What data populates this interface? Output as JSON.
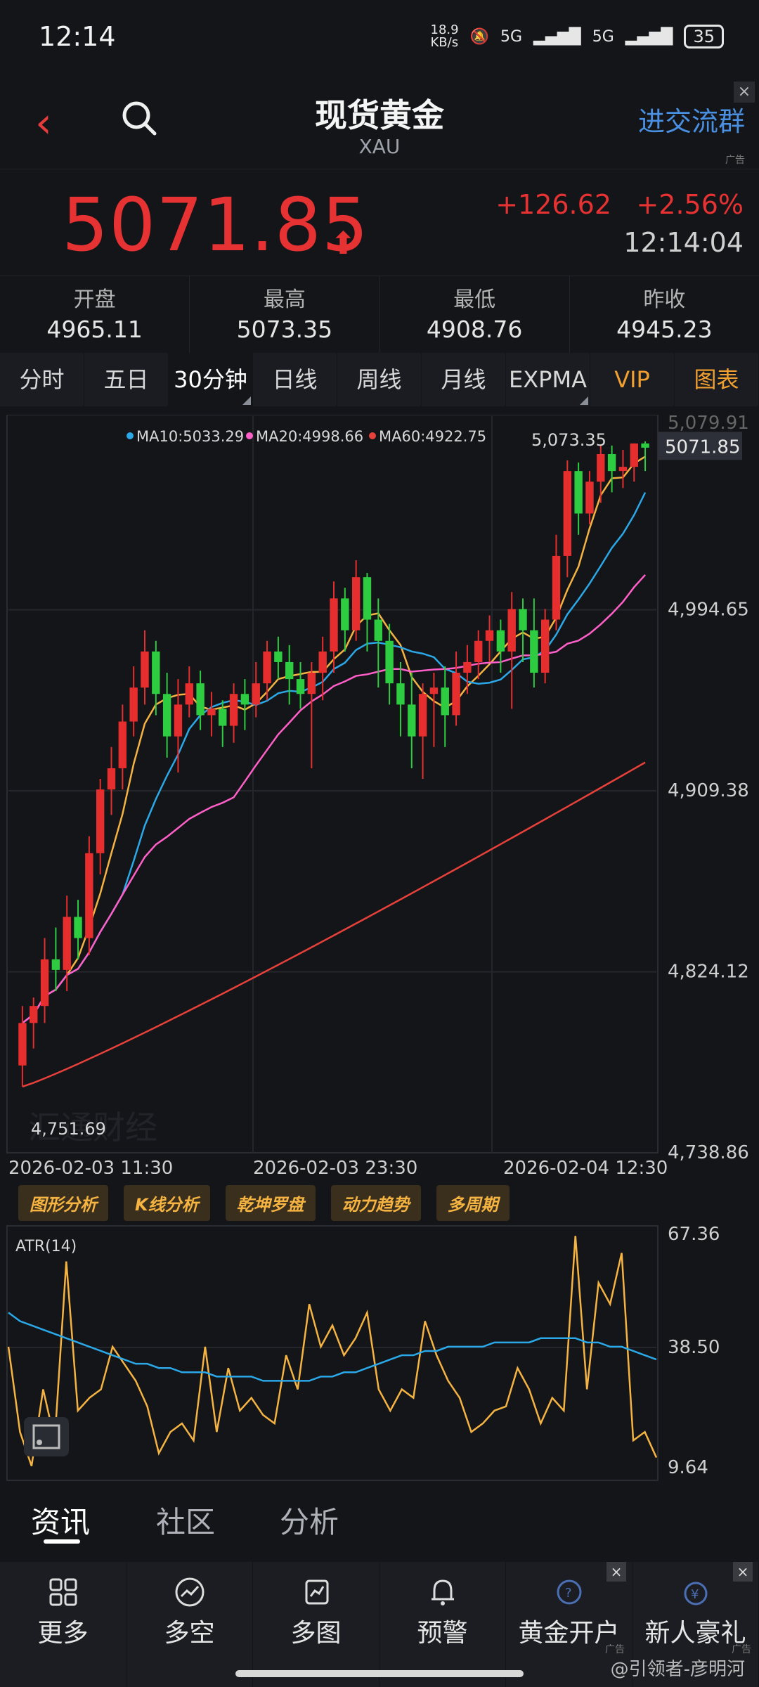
{
  "status_bar": {
    "time": "12:14",
    "speed": "18.9\nKB/s",
    "net1": "5G",
    "net2": "5G",
    "battery": "35"
  },
  "header": {
    "title": "现货黄金",
    "subtitle": "XAU",
    "ad_link": "进交流群",
    "ad_tag": "广告"
  },
  "quote": {
    "price": "5071.85",
    "change": "+126.62",
    "change_pct": "+2.56%",
    "time": "12:14:04"
  },
  "stats": [
    {
      "label": "开盘",
      "value": "4965.11"
    },
    {
      "label": "最高",
      "value": "5073.35"
    },
    {
      "label": "最低",
      "value": "4908.76"
    },
    {
      "label": "昨收",
      "value": "4945.23"
    }
  ],
  "tabs": [
    "分时",
    "五日",
    "30分钟",
    "日线",
    "周线",
    "月线",
    "EXPMA",
    "VIP",
    "图表"
  ],
  "active_tab": "30分钟",
  "chart_data": {
    "type": "candlestick",
    "legend": {
      "ma10": "MA10:5033.29",
      "ma20": "MA20:4998.66",
      "ma60": "MA60:4922.75"
    },
    "y_ticks": [
      "5,079.91",
      "4,994.65",
      "4,909.38",
      "4,824.12",
      "4,738.86"
    ],
    "ylim": [
      4738.86,
      5079.91
    ],
    "x_ticks": [
      "2026-02-03 11:30",
      "2026-02-03 23:30",
      "2026-02-04 12:30"
    ],
    "current_price_label": "5071.85",
    "high_label": "5,073.35",
    "low_label": "4,751.69",
    "candles": [
      [
        4780,
        4800,
        4770,
        4808
      ],
      [
        4800,
        4808,
        4788,
        4812
      ],
      [
        4808,
        4830,
        4800,
        4840
      ],
      [
        4830,
        4825,
        4815,
        4845
      ],
      [
        4825,
        4850,
        4815,
        4860
      ],
      [
        4850,
        4840,
        4830,
        4858
      ],
      [
        4840,
        4880,
        4832,
        4888
      ],
      [
        4880,
        4910,
        4870,
        4915
      ],
      [
        4910,
        4920,
        4898,
        4930
      ],
      [
        4920,
        4942,
        4910,
        4950
      ],
      [
        4942,
        4958,
        4935,
        4968
      ],
      [
        4958,
        4975,
        4950,
        4985
      ],
      [
        4975,
        4955,
        4945,
        4980
      ],
      [
        4955,
        4935,
        4925,
        4965
      ],
      [
        4935,
        4950,
        4918,
        4962
      ],
      [
        4950,
        4960,
        4944,
        4968
      ],
      [
        4960,
        4945,
        4938,
        4966
      ],
      [
        4945,
        4948,
        4935,
        4956
      ],
      [
        4948,
        4940,
        4930,
        4952
      ],
      [
        4940,
        4955,
        4932,
        4960
      ],
      [
        4955,
        4950,
        4938,
        4962
      ],
      [
        4950,
        4960,
        4944,
        4970
      ],
      [
        4960,
        4975,
        4952,
        4980
      ],
      [
        4975,
        4970,
        4962,
        4982
      ],
      [
        4970,
        4962,
        4950,
        4978
      ],
      [
        4962,
        4955,
        4948,
        4970
      ],
      [
        4955,
        4965,
        4920,
        4970
      ],
      [
        4965,
        4975,
        4952,
        4982
      ],
      [
        4975,
        5000,
        4965,
        5008
      ],
      [
        5000,
        4985,
        4975,
        5005
      ],
      [
        4985,
        5010,
        4980,
        5018
      ],
      [
        5010,
        4990,
        4975,
        5012
      ],
      [
        4990,
        4980,
        4958,
        5000
      ],
      [
        4980,
        4960,
        4950,
        4988
      ],
      [
        4960,
        4950,
        4935,
        4970
      ],
      [
        4950,
        4935,
        4920,
        4965
      ],
      [
        4935,
        4955,
        4915,
        4960
      ],
      [
        4955,
        4958,
        4930,
        4965
      ],
      [
        4958,
        4945,
        4930,
        4968
      ],
      [
        4945,
        4965,
        4940,
        4975
      ],
      [
        4965,
        4970,
        4955,
        4978
      ],
      [
        4970,
        4980,
        4962,
        4985
      ],
      [
        4980,
        4985,
        4970,
        4992
      ],
      [
        4985,
        4975,
        4965,
        4990
      ],
      [
        4975,
        4995,
        4948,
        5003
      ],
      [
        4995,
        4985,
        4970,
        5000
      ],
      [
        4985,
        4965,
        4958,
        5000
      ],
      [
        4965,
        4990,
        4960,
        4995
      ],
      [
        4990,
        5020,
        4985,
        5030
      ],
      [
        5020,
        5060,
        5010,
        5065
      ],
      [
        5060,
        5040,
        5030,
        5064
      ],
      [
        5040,
        5055,
        5035,
        5060
      ],
      [
        5055,
        5068,
        5045,
        5072
      ],
      [
        5068,
        5060,
        5050,
        5072
      ],
      [
        5060,
        5062,
        5052,
        5070
      ],
      [
        5062,
        5073,
        5055,
        5073
      ],
      [
        5073,
        5071,
        5060,
        5074
      ]
    ]
  },
  "tools": [
    "图形分析",
    "K线分析",
    "乾坤罗盘",
    "动力趋势",
    "多周期"
  ],
  "atr": {
    "label": "ATR(14)",
    "y_ticks": [
      "67.36",
      "38.50",
      "9.64"
    ],
    "ylim": [
      9.64,
      67.36
    ],
    "atr": [
      48,
      46,
      45,
      44,
      43,
      42,
      41,
      40,
      39,
      38,
      37,
      36,
      36,
      35,
      35,
      34,
      34,
      34,
      33,
      33,
      33,
      33,
      32,
      32,
      32,
      32,
      32,
      33,
      33,
      34,
      34,
      35,
      36,
      37,
      38,
      38,
      39,
      39,
      40,
      40,
      40,
      40,
      41,
      41,
      41,
      41,
      42,
      42,
      42,
      42,
      41,
      41,
      40,
      40,
      39,
      38,
      37
    ],
    "tr": [
      40,
      20,
      12,
      30,
      18,
      60,
      25,
      28,
      30,
      40,
      36,
      32,
      26,
      15,
      20,
      22,
      18,
      40,
      20,
      35,
      25,
      28,
      24,
      22,
      38,
      30,
      50,
      40,
      45,
      38,
      42,
      48,
      30,
      25,
      30,
      28,
      46,
      38,
      32,
      28,
      20,
      22,
      25,
      26,
      35,
      30,
      22,
      28,
      25,
      66,
      30,
      55,
      50,
      62,
      18,
      20,
      14
    ]
  },
  "news_tabs": [
    "资讯",
    "社区",
    "分析"
  ],
  "bottom": [
    {
      "label": "更多",
      "icon": "grid-icon"
    },
    {
      "label": "多空",
      "icon": "trend-icon"
    },
    {
      "label": "多图",
      "icon": "charts-icon"
    },
    {
      "label": "预警",
      "icon": "bell-icon"
    },
    {
      "label": "黄金开户",
      "icon": "gold-account-icon",
      "ad": "广告"
    },
    {
      "label": "新人豪礼",
      "icon": "gift-icon",
      "ad": "广告"
    }
  ],
  "watermark": "@引领者-彦明河",
  "chart_watermark": "汇通财经"
}
